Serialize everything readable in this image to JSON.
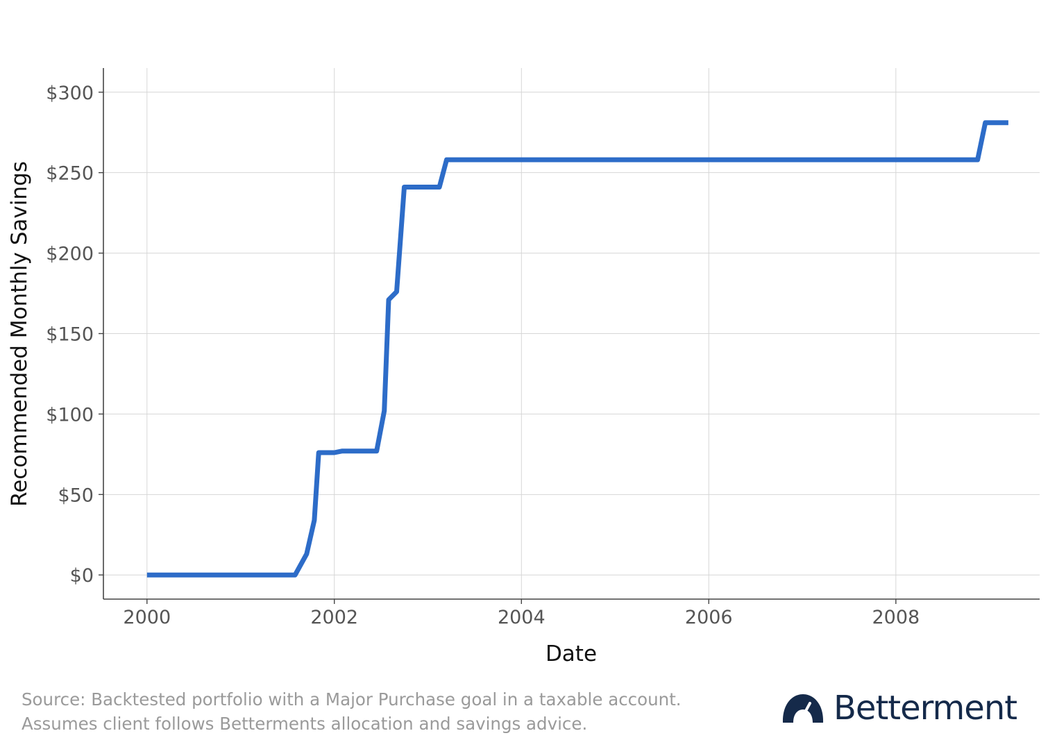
{
  "chart_data": {
    "type": "line",
    "xlabel": "Date",
    "ylabel": "Recommended Monthly Savings",
    "xlim": [
      "1999-07-15",
      "2009-07-15"
    ],
    "ylim": [
      -15,
      315
    ],
    "x_ticks": [
      {
        "date": "2000-01-01",
        "label": "2000"
      },
      {
        "date": "2002-01-01",
        "label": "2002"
      },
      {
        "date": "2004-01-01",
        "label": "2004"
      },
      {
        "date": "2006-01-01",
        "label": "2006"
      },
      {
        "date": "2008-01-01",
        "label": "2008"
      }
    ],
    "y_ticks": [
      {
        "value": 0,
        "label": "$0"
      },
      {
        "value": 50,
        "label": "$50"
      },
      {
        "value": 100,
        "label": "$100"
      },
      {
        "value": 150,
        "label": "$150"
      },
      {
        "value": 200,
        "label": "$200"
      },
      {
        "value": 250,
        "label": "$250"
      },
      {
        "value": 300,
        "label": "$300"
      }
    ],
    "grid": true,
    "line_color": "#2d6cc8",
    "series": [
      {
        "x": [
          "2000-01-01",
          "2001-08-01",
          "2001-09-15",
          "2001-10-15",
          "2001-11-01",
          "2002-01-01",
          "2002-02-01",
          "2002-06-15",
          "2002-07-15",
          "2002-08-01",
          "2002-09-01",
          "2002-10-01",
          "2003-02-15",
          "2003-03-15",
          "2008-11-15",
          "2008-12-15",
          "2009-03-15"
        ],
        "y": [
          0,
          0,
          13,
          34,
          76,
          76,
          77,
          77,
          102,
          171,
          176,
          241,
          241,
          258,
          258,
          281,
          281
        ]
      }
    ]
  },
  "footer": {
    "line1": "Source: Backtested portfolio with a Major Purchase goal in a taxable account.",
    "line2": "Assumes client follows Betterments allocation and savings advice."
  },
  "brand": {
    "name": "Betterment",
    "logo_icon": "speedometer-icon",
    "color": "#152a4a"
  }
}
